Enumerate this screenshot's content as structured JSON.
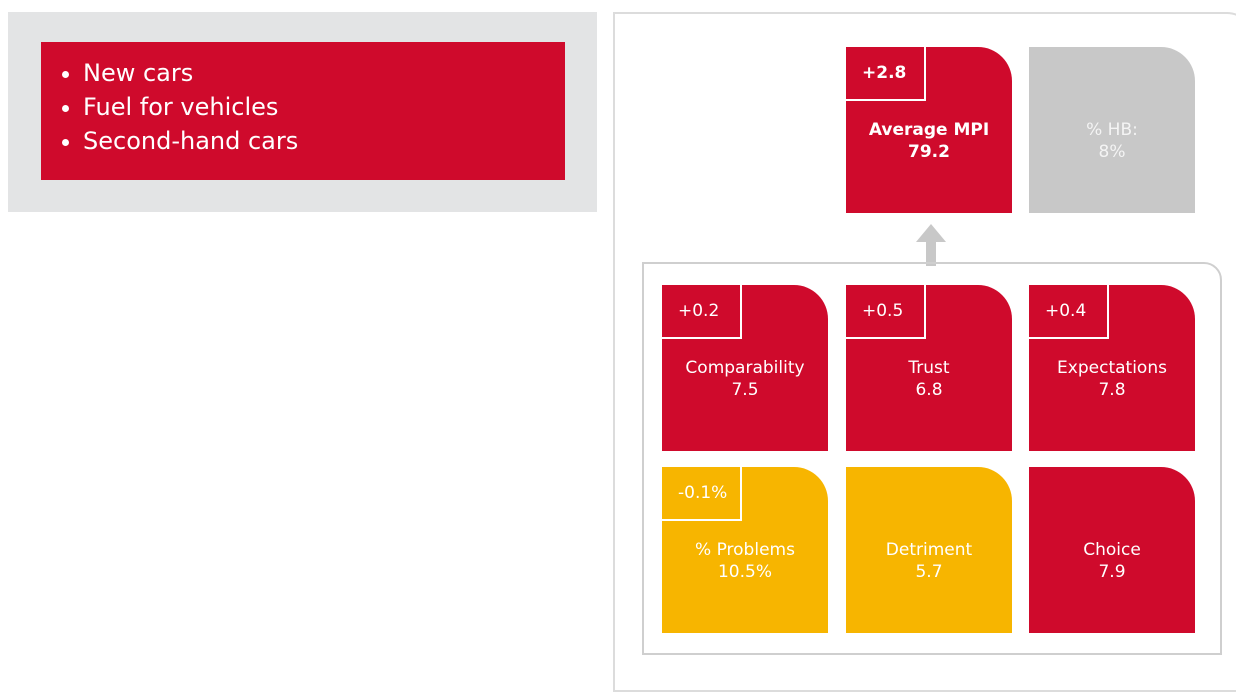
{
  "categories_list": [
    "New cars",
    "Fuel for vehicles",
    "Second-hand cars"
  ],
  "mpi": {
    "badge": "+2.8",
    "label": "Average MPI",
    "value": "79.2",
    "color": "#cf0a2c"
  },
  "hb": {
    "label": "% HB:",
    "value": "8%",
    "color": "#c8c8c8"
  },
  "tiles": [
    {
      "badge": "+0.2",
      "label": "Comparability",
      "value": "7.5",
      "color": "#cf0a2c"
    },
    {
      "badge": "+0.5",
      "label": "Trust",
      "value": "6.8",
      "color": "#cf0a2c"
    },
    {
      "badge": "+0.4",
      "label": "Expectations",
      "value": "7.8",
      "color": "#cf0a2c"
    },
    {
      "badge": "-0.1%",
      "label": "% Problems",
      "value": "10.5%",
      "color": "#f7b500"
    },
    {
      "label": "Detriment",
      "value": "5.7",
      "color": "#f7b500"
    },
    {
      "label": "Choice",
      "value": "7.9",
      "color": "#cf0a2c"
    }
  ]
}
